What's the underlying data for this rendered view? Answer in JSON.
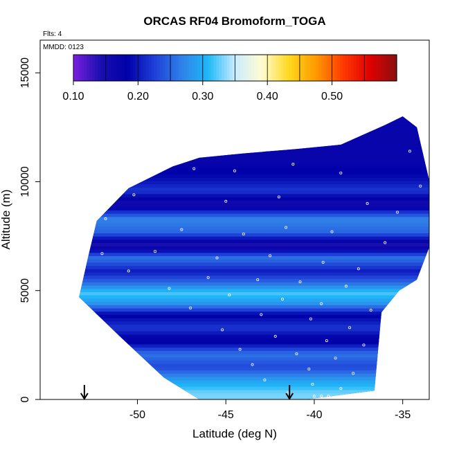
{
  "chart_data": {
    "type": "heatmap",
    "title": "ORCAS RF04 Bromoform_TOGA",
    "flights_label": "Flts: 4",
    "date_label": "MMDD: 0123",
    "xlabel": "Latitude (deg N)",
    "ylabel": "Altitude (m)",
    "xlim": [
      -55.5,
      -33.5
    ],
    "ylim": [
      0,
      16500
    ],
    "x_ticks": [
      "-50",
      "-45",
      "-40",
      "-35"
    ],
    "x_tick_values": [
      -50,
      -45,
      -40,
      -35
    ],
    "y_ticks": [
      "0",
      "5000",
      "10000",
      "15000"
    ],
    "y_tick_values": [
      0,
      5000,
      10000,
      15000
    ],
    "colorbar": {
      "ticks": [
        "0.10",
        "0.20",
        "0.30",
        "0.40",
        "0.50"
      ],
      "tick_values": [
        0.1,
        0.2,
        0.3,
        0.4,
        0.5
      ],
      "range": [
        0.1,
        0.6
      ],
      "colors": [
        "#7a1fe0",
        "#1a0fb0",
        "#0000a8",
        "#1f3fd8",
        "#2f7fe8",
        "#1fb8f8",
        "#c8ecff",
        "#fffcd0",
        "#ffd820",
        "#ff9a00",
        "#ff3a00",
        "#e00000",
        "#8a1010"
      ]
    },
    "arrows_latitude": [
      -53.0,
      -41.4
    ],
    "domain_outline": {
      "lat": [
        -52.3,
        -50.5,
        -48.0,
        -46.5,
        -44.0,
        -41.0,
        -38.5,
        -36.0,
        -35.0,
        -34.2,
        -33.4,
        -33.4,
        -34.2,
        -35.2,
        -36.2,
        -36.6,
        -40.5,
        -44.5,
        -46.5,
        -48.5,
        -51.0,
        -53.3,
        -52.8
      ],
      "alt": [
        8200,
        9700,
        10700,
        11100,
        11300,
        11500,
        11700,
        12600,
        13000,
        12500,
        9700,
        7200,
        5500,
        5000,
        4000,
        400,
        0,
        0,
        0,
        1000,
        2900,
        4700,
        6500
      ]
    },
    "layers": [
      {
        "alt": 11000,
        "value": 0.17
      },
      {
        "alt": 10200,
        "value": 0.19
      },
      {
        "alt": 9600,
        "value": 0.22
      },
      {
        "alt": 9000,
        "value": 0.15
      },
      {
        "alt": 8300,
        "value": 0.27
      },
      {
        "alt": 7700,
        "value": 0.25
      },
      {
        "alt": 7100,
        "value": 0.14
      },
      {
        "alt": 6500,
        "value": 0.26
      },
      {
        "alt": 5900,
        "value": 0.2
      },
      {
        "alt": 5400,
        "value": 0.25
      },
      {
        "alt": 4900,
        "value": 0.32
      },
      {
        "alt": 4400,
        "value": 0.28
      },
      {
        "alt": 3900,
        "value": 0.18
      },
      {
        "alt": 3300,
        "value": 0.22
      },
      {
        "alt": 2700,
        "value": 0.17
      },
      {
        "alt": 2100,
        "value": 0.26
      },
      {
        "alt": 1500,
        "value": 0.23
      },
      {
        "alt": 900,
        "value": 0.29
      },
      {
        "alt": 300,
        "value": 0.33
      }
    ],
    "samples": [
      {
        "lat": -46.8,
        "alt": 10600
      },
      {
        "lat": -44.5,
        "alt": 10500
      },
      {
        "lat": -41.2,
        "alt": 10800
      },
      {
        "lat": -38.5,
        "alt": 10400
      },
      {
        "lat": -34.6,
        "alt": 11400
      },
      {
        "lat": -34.0,
        "alt": 9800
      },
      {
        "lat": -50.2,
        "alt": 9400
      },
      {
        "lat": -45.0,
        "alt": 9100
      },
      {
        "lat": -42.0,
        "alt": 9300
      },
      {
        "lat": -37.0,
        "alt": 9000
      },
      {
        "lat": -35.3,
        "alt": 8600
      },
      {
        "lat": -51.8,
        "alt": 8300
      },
      {
        "lat": -47.5,
        "alt": 7800
      },
      {
        "lat": -44.0,
        "alt": 7600
      },
      {
        "lat": -41.6,
        "alt": 7900
      },
      {
        "lat": -39.0,
        "alt": 7700
      },
      {
        "lat": -36.0,
        "alt": 7200
      },
      {
        "lat": -52.0,
        "alt": 6700
      },
      {
        "lat": -49.0,
        "alt": 6800
      },
      {
        "lat": -45.5,
        "alt": 6500
      },
      {
        "lat": -42.5,
        "alt": 6600
      },
      {
        "lat": -39.5,
        "alt": 6300
      },
      {
        "lat": -37.5,
        "alt": 6000
      },
      {
        "lat": -50.5,
        "alt": 5900
      },
      {
        "lat": -46.0,
        "alt": 5600
      },
      {
        "lat": -43.2,
        "alt": 5500
      },
      {
        "lat": -40.8,
        "alt": 5400
      },
      {
        "lat": -38.2,
        "alt": 5200
      },
      {
        "lat": -48.2,
        "alt": 5100
      },
      {
        "lat": -44.8,
        "alt": 4800
      },
      {
        "lat": -41.8,
        "alt": 4600
      },
      {
        "lat": -39.6,
        "alt": 4400
      },
      {
        "lat": -36.8,
        "alt": 4100
      },
      {
        "lat": -47.0,
        "alt": 4200
      },
      {
        "lat": -43.0,
        "alt": 3900
      },
      {
        "lat": -40.2,
        "alt": 3700
      },
      {
        "lat": -38.0,
        "alt": 3300
      },
      {
        "lat": -45.2,
        "alt": 3200
      },
      {
        "lat": -42.2,
        "alt": 2900
      },
      {
        "lat": -39.3,
        "alt": 2700
      },
      {
        "lat": -37.2,
        "alt": 2500
      },
      {
        "lat": -44.2,
        "alt": 2300
      },
      {
        "lat": -41.0,
        "alt": 2100
      },
      {
        "lat": -38.8,
        "alt": 1900
      },
      {
        "lat": -43.5,
        "alt": 1600
      },
      {
        "lat": -40.3,
        "alt": 1400
      },
      {
        "lat": -37.8,
        "alt": 1200
      },
      {
        "lat": -42.8,
        "alt": 900
      },
      {
        "lat": -40.1,
        "alt": 700
      },
      {
        "lat": -38.5,
        "alt": 500
      },
      {
        "lat": -40.0,
        "alt": 150
      },
      {
        "lat": -39.6,
        "alt": 150
      },
      {
        "lat": -39.2,
        "alt": 150
      },
      {
        "lat": -41.5,
        "alt": 300
      }
    ]
  }
}
